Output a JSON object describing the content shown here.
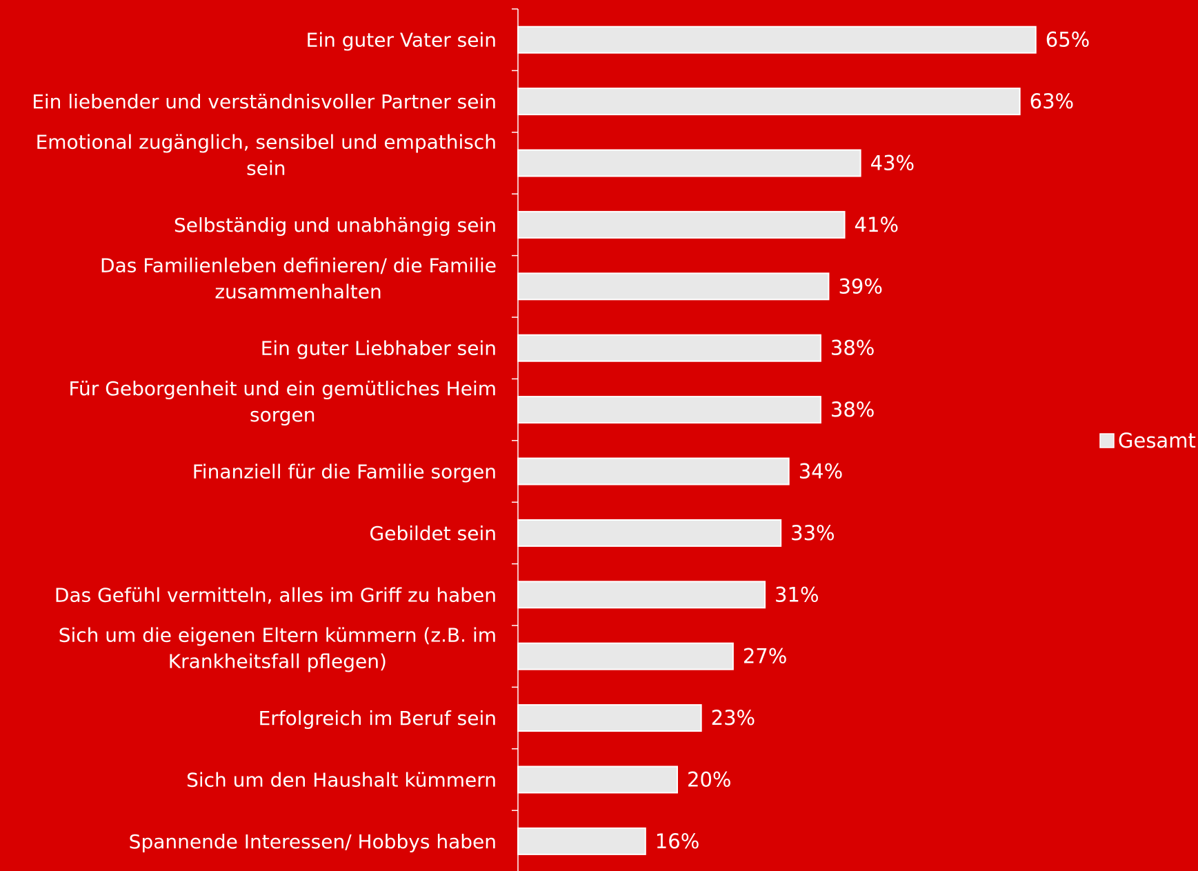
{
  "chart_data": {
    "type": "bar",
    "orientation": "horizontal",
    "categories": [
      [
        "Ein guter Vater sein"
      ],
      [
        "Ein liebender und verständnisvoller Partner sein"
      ],
      [
        "Emotional zugänglich, sensibel und empathisch",
        "sein"
      ],
      [
        "Selbständig und unabhängig sein"
      ],
      [
        "Das Familienleben definieren/ die Familie",
        "zusammenhalten"
      ],
      [
        "Ein guter Liebhaber sein"
      ],
      [
        "Für Geborgenheit und ein gemütliches Heim",
        "sorgen"
      ],
      [
        "Finanziell für die Familie sorgen"
      ],
      [
        "Gebildet sein"
      ],
      [
        "Das Gefühl vermitteln, alles im Griff zu haben"
      ],
      [
        "Sich um die eigenen Eltern kümmern (z.B. im",
        "Krankheitsfall pflegen)"
      ],
      [
        "Erfolgreich im Beruf sein"
      ],
      [
        "Sich um den Haushalt kümmern"
      ],
      [
        "Spannende Interessen/ Hobbys haben"
      ]
    ],
    "series": [
      {
        "name": "Gesamt",
        "values": [
          65,
          63,
          43,
          41,
          39,
          38,
          38,
          34,
          33,
          31,
          27,
          23,
          20,
          16
        ],
        "labels": [
          "65%",
          "63%",
          "43%",
          "41%",
          "39%",
          "38%",
          "38%",
          "34%",
          "33%",
          "31%",
          "27%",
          "23%",
          "20%",
          "16%"
        ],
        "color": "#e8e8e8"
      }
    ],
    "xlim": [
      0,
      85
    ],
    "legend_position": "right",
    "background": "#d80000"
  }
}
